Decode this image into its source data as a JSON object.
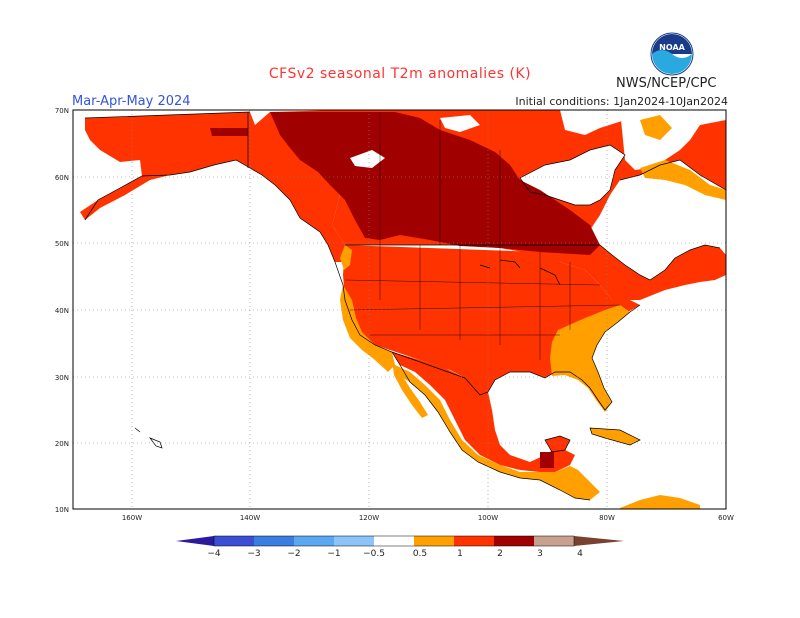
{
  "title": "CFSv2 seasonal T2m anomalies (K)",
  "period": "Mar-Apr-May 2024",
  "initial_conditions": "Initial conditions: 1Jan2024-10Jan2024",
  "agency": "NWS/NCEP/CPC",
  "logo": {
    "text": "NOAA",
    "icon": "noaa-logo-icon"
  },
  "lat_labels": [
    "70N",
    "60N",
    "50N",
    "40N",
    "30N",
    "20N",
    "10N"
  ],
  "lon_labels": [
    "160W",
    "140W",
    "120W",
    "100W",
    "80W",
    "60W"
  ],
  "colorbar": {
    "labels": [
      "−4",
      "−3",
      "−2",
      "−1",
      "−0.5",
      "0.5",
      "1",
      "2",
      "3",
      "4"
    ],
    "colors": [
      "#2b1a9e",
      "#3a4fd4",
      "#3a7ee0",
      "#5aa8f0",
      "#8cc4f8",
      "#ffffff",
      "#ffa000",
      "#ff3300",
      "#a00000",
      "#c8a090",
      "#7a4030"
    ]
  },
  "palette": {
    "ocean": "#ffffff",
    "neutral_land": "#ffffff",
    "anom_0_5_1": "#ffa000",
    "anom_1_2": "#ff3300",
    "anom_2_3": "#a00000",
    "border": "#000000",
    "grid": "#888888"
  }
}
